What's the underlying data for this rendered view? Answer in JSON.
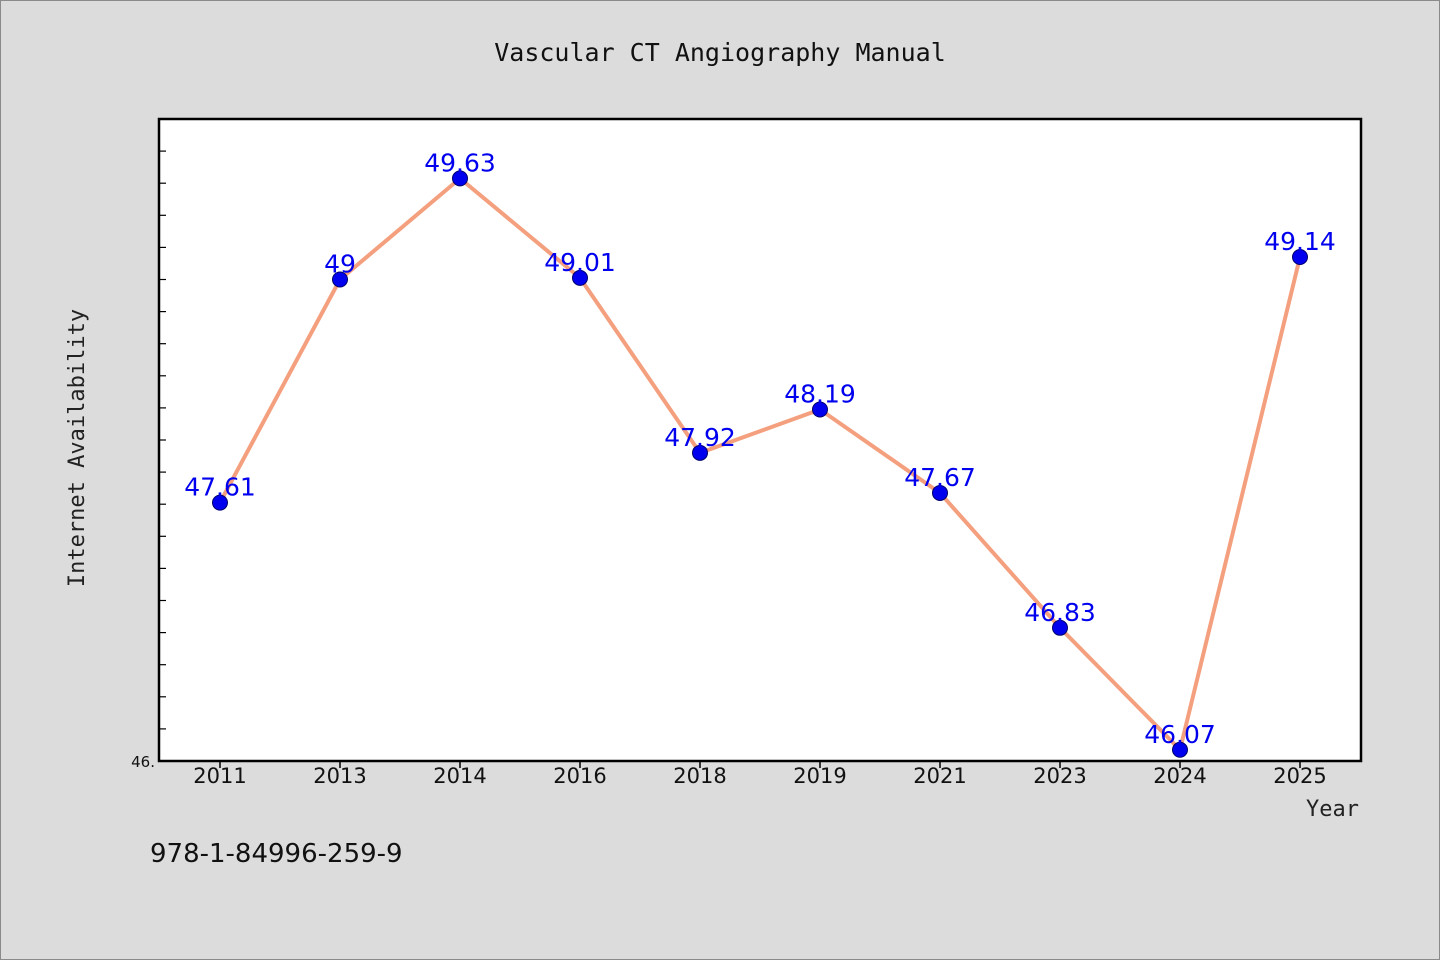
{
  "chart_data": {
    "type": "line",
    "title": "Vascular CT Angiography Manual",
    "xlabel": "Year",
    "ylabel": "Internet Availability",
    "categories": [
      "2011",
      "2013",
      "2014",
      "2016",
      "2018",
      "2019",
      "2021",
      "2023",
      "2024",
      "2025"
    ],
    "series": [
      {
        "values": [
          47.61,
          49,
          49.63,
          49.01,
          47.92,
          48.19,
          47.67,
          46.83,
          46.07,
          49.14
        ]
      }
    ],
    "data_labels": [
      "47.61",
      "49",
      "49.63",
      "49.01",
      "47.92",
      "48.19",
      "47.67",
      "46.83",
      "46.07",
      "49.14"
    ],
    "ytick_labels": [
      "46."
    ],
    "ylim": [
      46,
      50
    ],
    "grid": false,
    "line_color": "#f4a07f",
    "marker_color": "#0000ee",
    "label_color": "#0000ee"
  },
  "footer": {
    "isbn": "978-1-84996-259-9"
  }
}
